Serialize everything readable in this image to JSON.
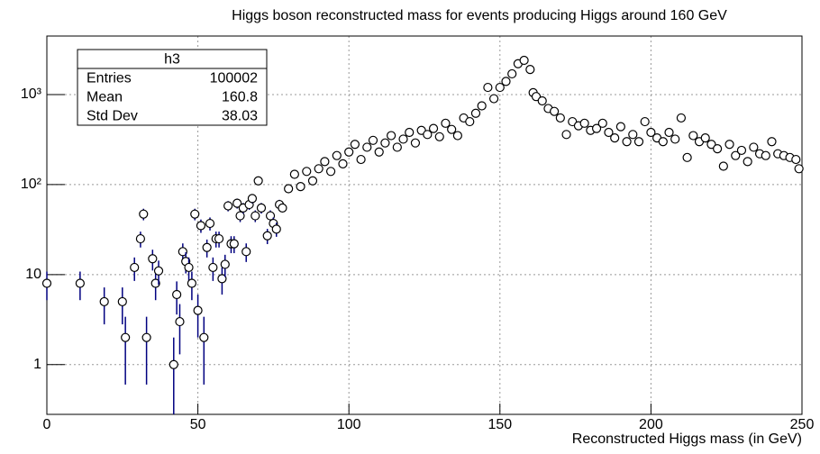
{
  "chart_data": {
    "type": "scatter",
    "title": "Higgs boson reconstructed mass for events producing Higgs around 160 GeV",
    "x_label": "Reconstructed Higgs mass (in GeV)",
    "xlim": [
      0,
      250
    ],
    "xticks": [
      0,
      50,
      100,
      150,
      200,
      250
    ],
    "ylim": [
      0.28,
      4470
    ],
    "log_y": true,
    "grid": true,
    "yticks": [
      1,
      10,
      {
        "value": 100,
        "label": "10²"
      },
      {
        "value": 1000,
        "label": "10³"
      }
    ],
    "color": "#000000",
    "error_color": "#000080",
    "x": [
      0,
      11,
      19,
      25,
      26,
      29,
      31,
      32,
      33,
      35,
      36,
      37,
      42,
      43,
      44,
      45,
      46,
      47,
      48,
      49,
      50,
      51,
      52,
      53,
      54,
      55,
      56,
      57,
      58,
      59,
      60,
      61,
      62,
      63,
      64,
      65,
      66,
      67,
      68,
      69,
      70,
      71,
      73,
      74,
      75,
      76,
      77,
      78,
      80,
      82,
      84,
      86,
      88,
      90,
      92,
      94,
      96,
      98,
      100,
      102,
      104,
      106,
      108,
      110,
      112,
      114,
      116,
      118,
      120,
      122,
      124,
      126,
      128,
      130,
      132,
      134,
      136,
      138,
      140,
      142,
      144,
      146,
      148,
      150,
      152,
      154,
      156,
      158,
      160,
      161,
      162,
      164,
      166,
      168,
      170,
      172,
      174,
      176,
      178,
      180,
      182,
      184,
      186,
      188,
      190,
      192,
      194,
      196,
      198,
      200,
      202,
      204,
      206,
      208,
      210,
      212,
      214,
      216,
      218,
      220,
      222,
      224,
      226,
      228,
      230,
      232,
      234,
      236,
      238,
      240,
      242,
      244,
      246,
      248,
      249
    ],
    "values": [
      8,
      8,
      5,
      5,
      2,
      12,
      25,
      47,
      2,
      15,
      8,
      11,
      1,
      6,
      3,
      18,
      14,
      12,
      8,
      47,
      4,
      35,
      2,
      20,
      37,
      12,
      25,
      25,
      9,
      13,
      58,
      22,
      22,
      62,
      45,
      55,
      18,
      60,
      70,
      45,
      110,
      55,
      27,
      45,
      37,
      32,
      60,
      55,
      90,
      130,
      95,
      140,
      110,
      150,
      180,
      140,
      210,
      170,
      230,
      280,
      190,
      260,
      310,
      230,
      290,
      350,
      260,
      320,
      380,
      290,
      400,
      360,
      420,
      340,
      480,
      410,
      350,
      550,
      500,
      620,
      750,
      1200,
      900,
      1200,
      1400,
      1700,
      2200,
      2400,
      1900,
      1050,
      950,
      850,
      700,
      650,
      550,
      360,
      500,
      450,
      480,
      400,
      420,
      480,
      380,
      330,
      440,
      300,
      360,
      300,
      500,
      380,
      330,
      300,
      380,
      320,
      550,
      200,
      350,
      300,
      330,
      280,
      250,
      160,
      280,
      210,
      240,
      180,
      260,
      220,
      210,
      300,
      220,
      210,
      200,
      190,
      150
    ],
    "errors": [
      2.8,
      2.8,
      2.2,
      2.2,
      1.4,
      3.5,
      5,
      6.9,
      1.4,
      3.9,
      2.8,
      3.3,
      1,
      2.4,
      1.7,
      4.2,
      3.7,
      3.5,
      2.8,
      6.9,
      2,
      5.9,
      1.4,
      4.5,
      6.1,
      3.5,
      5,
      5,
      3,
      3.6,
      7.6,
      4.7,
      4.7,
      7.9,
      6.7,
      7.4,
      4.2,
      7.7,
      8.4,
      6.7,
      10.5,
      7.4,
      5.2,
      6.7,
      6.1,
      5.7,
      7.7,
      null,
      null,
      null,
      null,
      null,
      null,
      null,
      null,
      null,
      null,
      null,
      null,
      null,
      null,
      null,
      null,
      null,
      null,
      null,
      null,
      null,
      null,
      null,
      null,
      null,
      null,
      null,
      null,
      null,
      null,
      null,
      null,
      null,
      null,
      null,
      null,
      null,
      null,
      null,
      null,
      null,
      null,
      null,
      null,
      null,
      null,
      null,
      null,
      null,
      null,
      null,
      null,
      null,
      null,
      null,
      null,
      null,
      null,
      null,
      null,
      null,
      null,
      null,
      null,
      null,
      null,
      null,
      null,
      null,
      null,
      null,
      null,
      null,
      null,
      null,
      null,
      null,
      null,
      null,
      null,
      null,
      null,
      null,
      null,
      null,
      null,
      null,
      null
    ],
    "stats": {
      "title": "h3",
      "rows": [
        [
          "Entries",
          "100002"
        ],
        [
          "Mean",
          "160.8"
        ],
        [
          "Std Dev",
          "38.03"
        ]
      ]
    }
  }
}
